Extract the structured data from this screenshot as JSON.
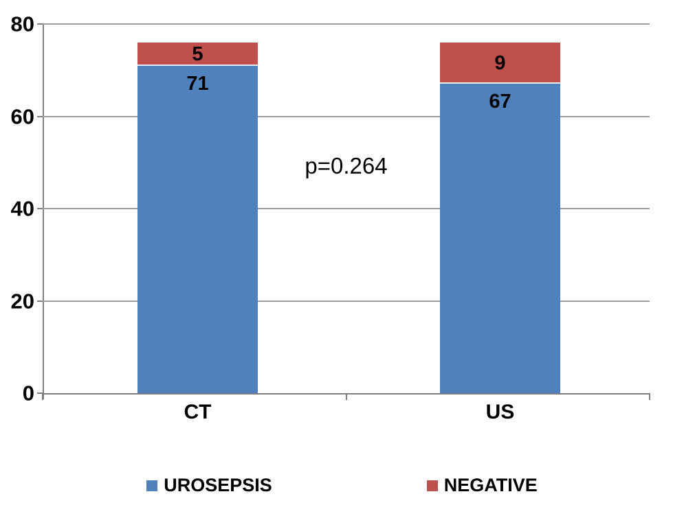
{
  "chart_data": {
    "type": "bar",
    "subtype": "stacked",
    "title": "",
    "xlabel": "",
    "ylabel": "",
    "categories": [
      "CT",
      "US"
    ],
    "series": [
      {
        "name": "UROSEPSIS",
        "color": "#4F81BD",
        "values": [
          71,
          67
        ]
      },
      {
        "name": "NEGATIVE",
        "color": "#C0504D",
        "values": [
          5,
          9
        ]
      }
    ],
    "annotation": "p=0.264",
    "ylim": [
      0,
      80
    ],
    "yticks": [
      0,
      20,
      40,
      60,
      80
    ],
    "grid": "horizontal",
    "legend_position": "bottom"
  }
}
